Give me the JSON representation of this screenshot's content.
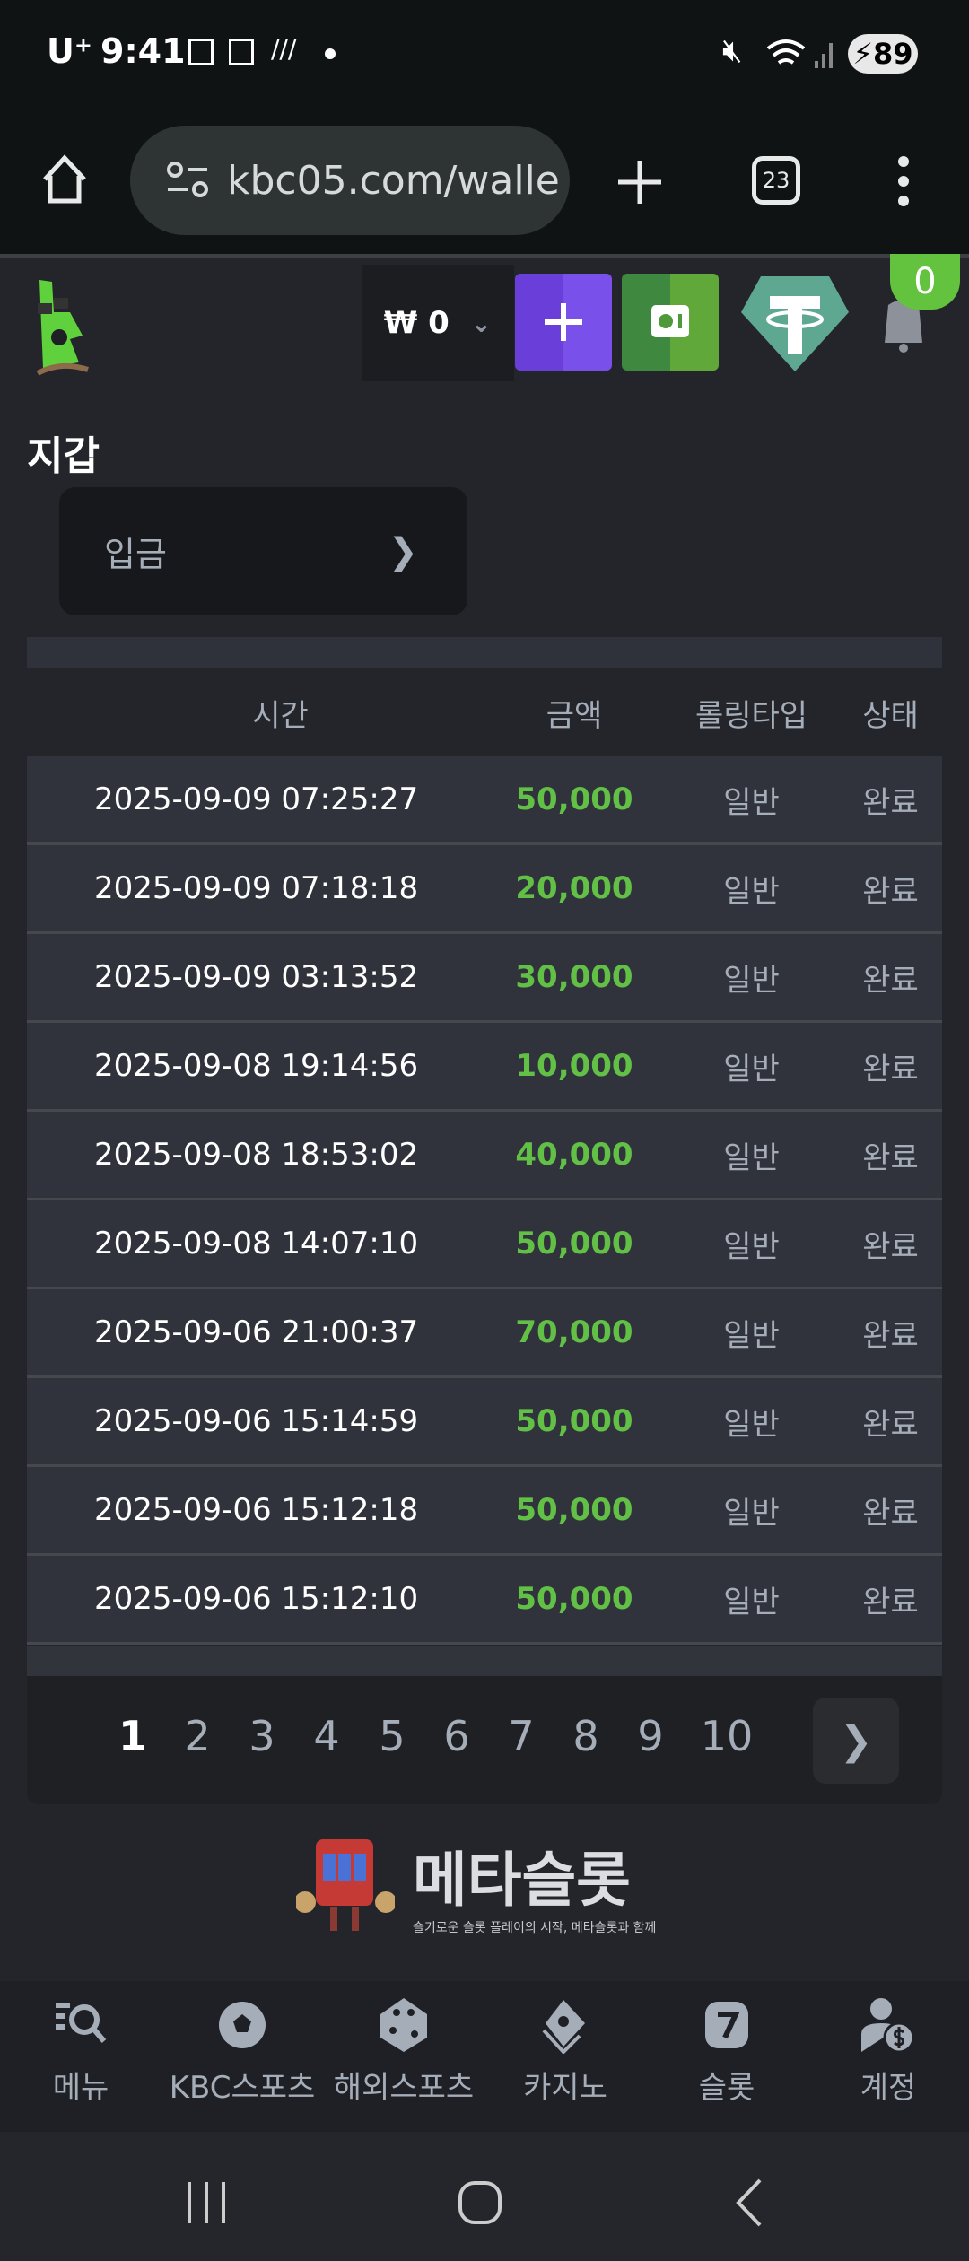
{
  "status_bar": {
    "carrier": "U⁺",
    "time": "9:41",
    "battery": "89"
  },
  "browser": {
    "url": "kbc05.com/walle",
    "tab_count": "23"
  },
  "header": {
    "balance": "₩ 0",
    "notification_count": "0",
    "colors": {
      "deposit_button": "#7044e0",
      "vault_button": "#4e9a3a",
      "tether": "#5ea891",
      "badge": "#63c33e"
    }
  },
  "page": {
    "title": "지갑",
    "deposit_label": "입금"
  },
  "table": {
    "columns": [
      "시간",
      "금액",
      "롤링타입",
      "상태"
    ],
    "rows": [
      [
        "2025-09-09 07:25:27",
        "50,000",
        "일반",
        "완료"
      ],
      [
        "2025-09-09 07:18:18",
        "20,000",
        "일반",
        "완료"
      ],
      [
        "2025-09-09 03:13:52",
        "30,000",
        "일반",
        "완료"
      ],
      [
        "2025-09-08 19:14:56",
        "10,000",
        "일반",
        "완료"
      ],
      [
        "2025-09-08 18:53:02",
        "40,000",
        "일반",
        "완료"
      ],
      [
        "2025-09-08 14:07:10",
        "50,000",
        "일반",
        "완료"
      ],
      [
        "2025-09-06 21:00:37",
        "70,000",
        "일반",
        "완료"
      ],
      [
        "2025-09-06 15:14:59",
        "50,000",
        "일반",
        "완료"
      ],
      [
        "2025-09-06 15:12:18",
        "50,000",
        "일반",
        "완료"
      ],
      [
        "2025-09-06 15:12:10",
        "50,000",
        "일반",
        "완료"
      ]
    ]
  },
  "pagination": {
    "pages": [
      "1",
      "2",
      "3",
      "4",
      "5",
      "6",
      "7",
      "8",
      "9",
      "10"
    ],
    "current": "1"
  },
  "watermark": {
    "title": "메타슬롯",
    "subtitle": "슬기로운 슬롯 플레이의 시작, 메타슬롯과 함께"
  },
  "bottom_nav": [
    {
      "label": "메뉴",
      "icon": "menu-search-icon"
    },
    {
      "label": "KBC스포츠",
      "icon": "soccer-ball-icon"
    },
    {
      "label": "해외스포츠",
      "icon": "dice-icon"
    },
    {
      "label": "카지노",
      "icon": "cards-icon"
    },
    {
      "label": "슬롯",
      "icon": "slot-seven-icon"
    },
    {
      "label": "계정",
      "icon": "account-coin-icon"
    }
  ]
}
